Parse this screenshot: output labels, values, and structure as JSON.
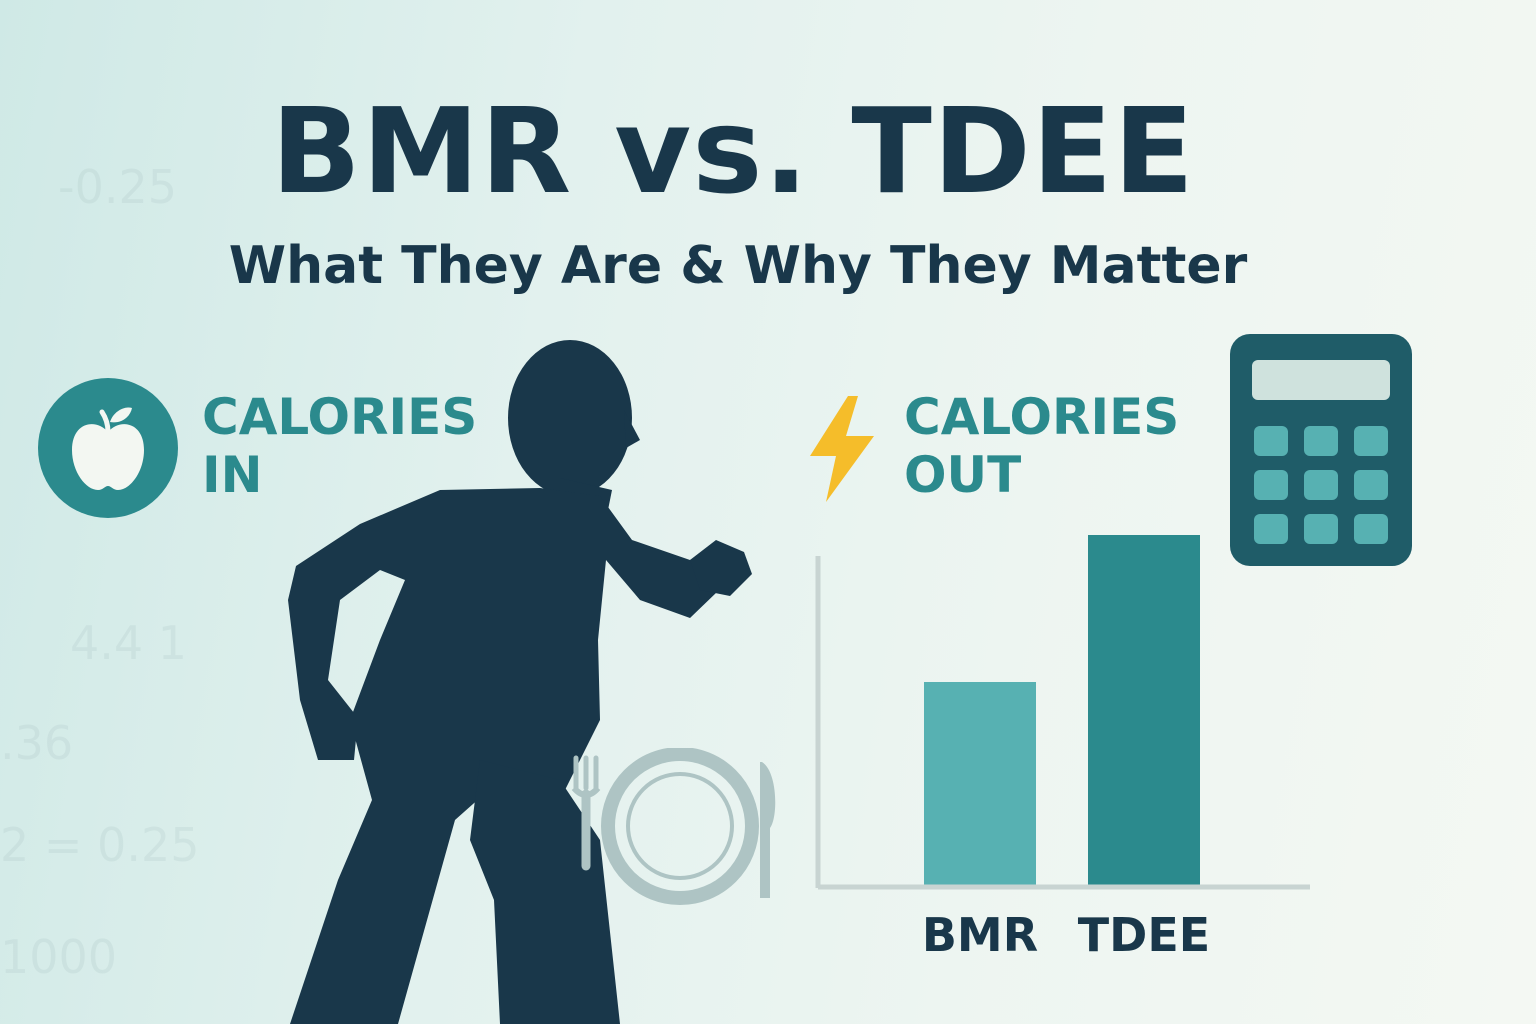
{
  "title": "BMR vs. TDEE",
  "subtitle": "What They Are & Why They Matter",
  "calories_in": {
    "line1": "CALORIES",
    "line2": "IN",
    "icon": "apple-icon"
  },
  "calories_out": {
    "line1": "CALORIES",
    "line2": "OUT",
    "icon": "lightning-bolt-icon"
  },
  "background_numbers": [
    "-0.25",
    "4.4 1",
    ".36",
    "2 = 0.25",
    "1000"
  ],
  "icons": [
    "running-person-icon",
    "plate-and-cutlery-icon",
    "calculator-icon"
  ],
  "colors": {
    "navy": "#19374a",
    "teal": "#2b8a8d",
    "light_teal": "#57b1b2",
    "bolt_yellow": "#f5bd2a",
    "axis_gray": "#c8d4d2"
  },
  "chart_data": {
    "type": "bar",
    "categories": [
      "BMR",
      "TDEE"
    ],
    "values": [
      0.58,
      1.0
    ],
    "title": "",
    "xlabel": "",
    "ylabel": "",
    "ylim": [
      0,
      1.0
    ],
    "grid": false,
    "value_scale_note": "",
    "bar_colors": [
      "#57b1b2",
      "#2b8a8d"
    ]
  }
}
